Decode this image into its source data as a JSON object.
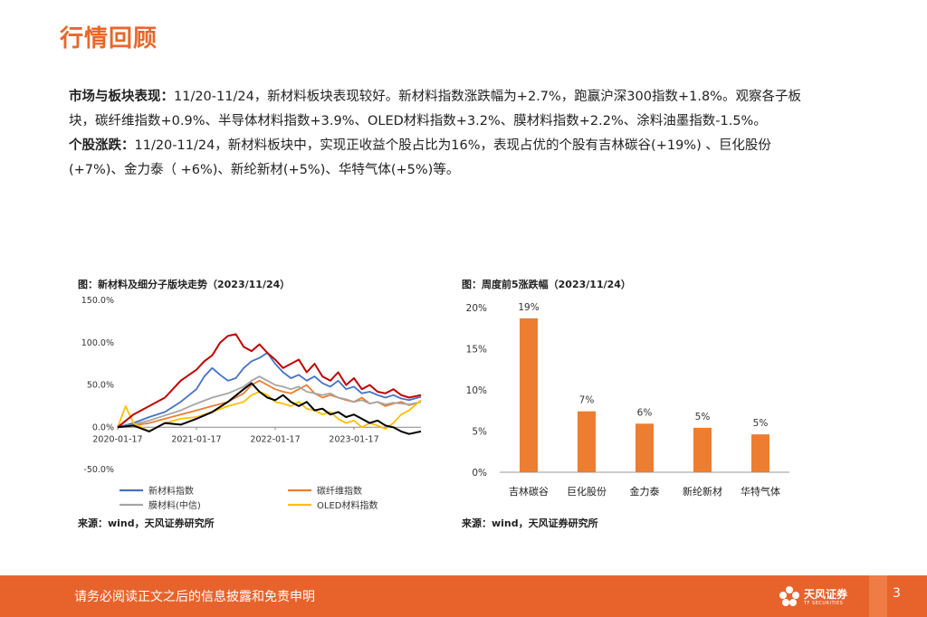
{
  "page": {
    "title": "行情回顾",
    "para1_label": "市场与板块表现：",
    "para1_text": "11/20-11/24，新材料板块表现较好。新材料指数涨跌幅为+2.7%，跑赢沪深300指数+1.8%。观察各子板块，碳纤维指数+0.9%、半导体材料指数+3.9%、OLED材料指数+3.2%、膜材料指数+2.2%、涂料油墨指数-1.5%。",
    "para2_label": "个股涨跌：",
    "para2_text": "11/20-11/24，新材料板块中，实现正收益个股占比为16%，表现占优的个股有吉林碳谷(+19%) 、巨化股份(+7%)、金力泰（ +6%)、新纶新材(+5%)、华特气体(+5%)等。"
  },
  "figure_left": {
    "title": "图：新材料及细分子版块走势（2023/11/24）",
    "source": "来源：wind，天风证券研究所"
  },
  "figure_right": {
    "title": "图：周度前5涨跌幅（2023/11/24）",
    "source": "来源：wind，天风证券研究所"
  },
  "footer": {
    "disclaimer": "请务必阅读正文之后的信息披露和免责申明",
    "brand": "天风证券",
    "brand_en": "TF SECURITIES",
    "page_number": "3"
  },
  "chart_data": [
    {
      "type": "line",
      "x_tick_labels": [
        "2020-01-17",
        "2021-01-17",
        "2022-01-17",
        "2023-01-17"
      ],
      "x_ticks_t": [
        0.0,
        1.0,
        2.0,
        3.0
      ],
      "xlim_t": [
        0.0,
        3.85
      ],
      "y_tick_labels": [
        "150.0%",
        "100.0%",
        "50.0%",
        "0.0%",
        "-50.0%"
      ],
      "y_ticks": [
        150,
        100,
        50,
        0,
        -50
      ],
      "ylim": [
        -50,
        150
      ],
      "legend_position": "bottom",
      "series": [
        {
          "name": "新材料指数",
          "color": "#4472c4",
          "t": [
            0,
            0.2,
            0.4,
            0.6,
            0.8,
            1.0,
            1.1,
            1.2,
            1.3,
            1.4,
            1.5,
            1.6,
            1.7,
            1.8,
            1.9,
            2.0,
            2.1,
            2.2,
            2.3,
            2.4,
            2.5,
            2.6,
            2.7,
            2.8,
            2.9,
            3.0,
            3.1,
            3.2,
            3.3,
            3.4,
            3.5,
            3.6,
            3.7,
            3.85
          ],
          "values": [
            0,
            5,
            12,
            18,
            30,
            45,
            60,
            70,
            62,
            55,
            58,
            70,
            78,
            82,
            88,
            75,
            65,
            58,
            62,
            55,
            60,
            52,
            48,
            55,
            45,
            48,
            40,
            42,
            38,
            35,
            38,
            34,
            32,
            36
          ]
        },
        {
          "name": "碳纤维指数",
          "color": "#ed7d31",
          "t": [
            0,
            0.2,
            0.4,
            0.6,
            0.8,
            1.0,
            1.2,
            1.4,
            1.6,
            1.7,
            1.8,
            1.9,
            2.0,
            2.1,
            2.2,
            2.3,
            2.4,
            2.5,
            2.6,
            2.7,
            2.8,
            2.9,
            3.0,
            3.1,
            3.2,
            3.3,
            3.4,
            3.5,
            3.6,
            3.7,
            3.85
          ],
          "values": [
            0,
            2,
            5,
            10,
            15,
            20,
            25,
            30,
            40,
            50,
            55,
            50,
            45,
            42,
            40,
            45,
            50,
            40,
            35,
            38,
            35,
            32,
            30,
            35,
            28,
            30,
            25,
            28,
            30,
            26,
            30
          ]
        },
        {
          "name": "膜材料(中信)",
          "color": "#a5a5a5",
          "t": [
            0,
            0.2,
            0.4,
            0.6,
            0.8,
            1.0,
            1.2,
            1.4,
            1.6,
            1.7,
            1.8,
            1.9,
            2.0,
            2.1,
            2.2,
            2.3,
            2.4,
            2.5,
            2.6,
            2.7,
            2.8,
            2.9,
            3.0,
            3.1,
            3.2,
            3.3,
            3.4,
            3.5,
            3.6,
            3.7,
            3.85
          ],
          "values": [
            0,
            3,
            8,
            14,
            20,
            28,
            35,
            40,
            48,
            55,
            60,
            55,
            50,
            48,
            45,
            48,
            42,
            40,
            38,
            40,
            35,
            33,
            30,
            32,
            28,
            30,
            27,
            29,
            28,
            27,
            30
          ]
        },
        {
          "name": "OLED材料指数",
          "color": "#ffc000",
          "t": [
            0,
            0.1,
            0.2,
            0.4,
            0.6,
            0.8,
            1.0,
            1.2,
            1.4,
            1.6,
            1.7,
            1.8,
            1.9,
            2.0,
            2.1,
            2.2,
            2.3,
            2.4,
            2.5,
            2.6,
            2.7,
            2.8,
            2.9,
            3.0,
            3.1,
            3.2,
            3.3,
            3.4,
            3.5,
            3.6,
            3.7,
            3.85
          ],
          "values": [
            0,
            25,
            5,
            -5,
            5,
            10,
            12,
            18,
            25,
            30,
            38,
            42,
            38,
            30,
            28,
            25,
            30,
            22,
            20,
            15,
            18,
            10,
            5,
            8,
            0,
            5,
            2,
            -2,
            5,
            15,
            20,
            32
          ]
        },
        {
          "name": "",
          "color": "#c00000",
          "t": [
            0,
            0.2,
            0.4,
            0.6,
            0.8,
            1.0,
            1.1,
            1.2,
            1.3,
            1.4,
            1.5,
            1.6,
            1.7,
            1.8,
            1.9,
            2.0,
            2.1,
            2.2,
            2.3,
            2.4,
            2.5,
            2.6,
            2.7,
            2.8,
            2.9,
            3.0,
            3.1,
            3.2,
            3.3,
            3.4,
            3.5,
            3.6,
            3.7,
            3.85
          ],
          "values": [
            0,
            15,
            25,
            35,
            55,
            68,
            78,
            85,
            100,
            108,
            110,
            95,
            90,
            98,
            88,
            80,
            70,
            75,
            80,
            65,
            75,
            60,
            55,
            65,
            50,
            58,
            45,
            50,
            42,
            40,
            45,
            38,
            35,
            38
          ]
        },
        {
          "name": "",
          "color": "#000000",
          "t": [
            0,
            0.2,
            0.4,
            0.6,
            0.8,
            1.0,
            1.2,
            1.4,
            1.6,
            1.7,
            1.8,
            1.9,
            2.0,
            2.1,
            2.2,
            2.3,
            2.4,
            2.5,
            2.6,
            2.7,
            2.8,
            2.9,
            3.0,
            3.1,
            3.2,
            3.3,
            3.4,
            3.5,
            3.6,
            3.7,
            3.85
          ],
          "values": [
            0,
            2,
            -5,
            5,
            3,
            10,
            18,
            30,
            45,
            52,
            42,
            35,
            32,
            38,
            30,
            25,
            30,
            20,
            22,
            15,
            18,
            12,
            15,
            10,
            5,
            8,
            2,
            0,
            -5,
            -8,
            -5
          ]
        }
      ]
    },
    {
      "type": "bar",
      "categories": [
        "吉林碳谷",
        "巨化股份",
        "金力泰",
        "新纶新材",
        "华特气体"
      ],
      "values": [
        19,
        7,
        6,
        5,
        5
      ],
      "plot_values": [
        18.7,
        7.4,
        5.9,
        5.4,
        4.6
      ],
      "data_labels": [
        "19%",
        "7%",
        "6%",
        "5%",
        "5%"
      ],
      "y_tick_labels": [
        "20%",
        "15%",
        "10%",
        "5%",
        "0%"
      ],
      "y_ticks": [
        20,
        15,
        10,
        5,
        0
      ],
      "ylim": [
        0,
        20
      ],
      "color": "#ed7d31"
    }
  ]
}
